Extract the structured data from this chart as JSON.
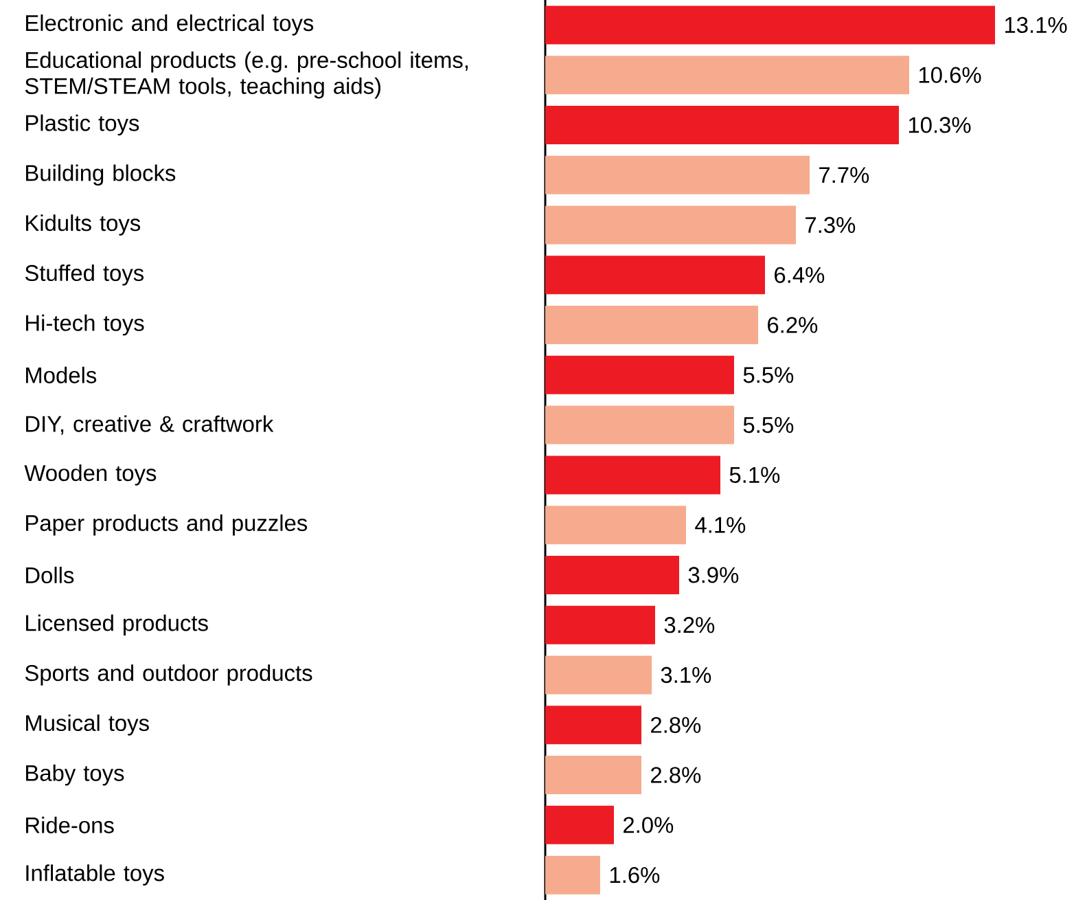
{
  "chart_data": {
    "type": "bar",
    "orientation": "horizontal",
    "tick_labels": "y",
    "categories": [
      "Electronic and electrical toys",
      "Educational products (e.g. pre-school items, STEM/STEAM tools, teaching aids)",
      "Plastic toys",
      "Building blocks",
      "Kidults toys",
      "Stuffed toys",
      "Hi-tech toys",
      "Models",
      "DIY, creative & craftwork",
      "Wooden toys",
      "Paper products and puzzles",
      "Dolls",
      "Licensed products",
      "Sports and outdoor products",
      "Musical toys",
      "Baby toys",
      "Ride-ons",
      "Inflatable toys"
    ],
    "values": [
      13.1,
      10.6,
      10.3,
      7.7,
      7.3,
      6.4,
      6.2,
      5.5,
      5.5,
      5.1,
      4.1,
      3.9,
      3.2,
      3.1,
      2.8,
      2.8,
      2.0,
      1.6
    ],
    "value_labels": [
      "13.1%",
      "10.6%",
      "10.3%",
      "7.7%",
      "7.3%",
      "6.4%",
      "6.2%",
      "5.5%",
      "5.5%",
      "5.1%",
      "4.1%",
      "3.9%",
      "3.2%",
      "3.1%",
      "2.8%",
      "2.8%",
      "2.0%",
      "1.6%"
    ],
    "colors": [
      "#ed1c24",
      "#f6ab8f",
      "#ed1c24",
      "#f6ab8f",
      "#f6ab8f",
      "#ed1c24",
      "#f6ab8f",
      "#ed1c24",
      "#f6ab8f",
      "#ed1c24",
      "#f6ab8f",
      "#ed1c24",
      "#ed1c24",
      "#f6ab8f",
      "#ed1c24",
      "#f6ab8f",
      "#ed1c24",
      "#f6ab8f"
    ]
  }
}
